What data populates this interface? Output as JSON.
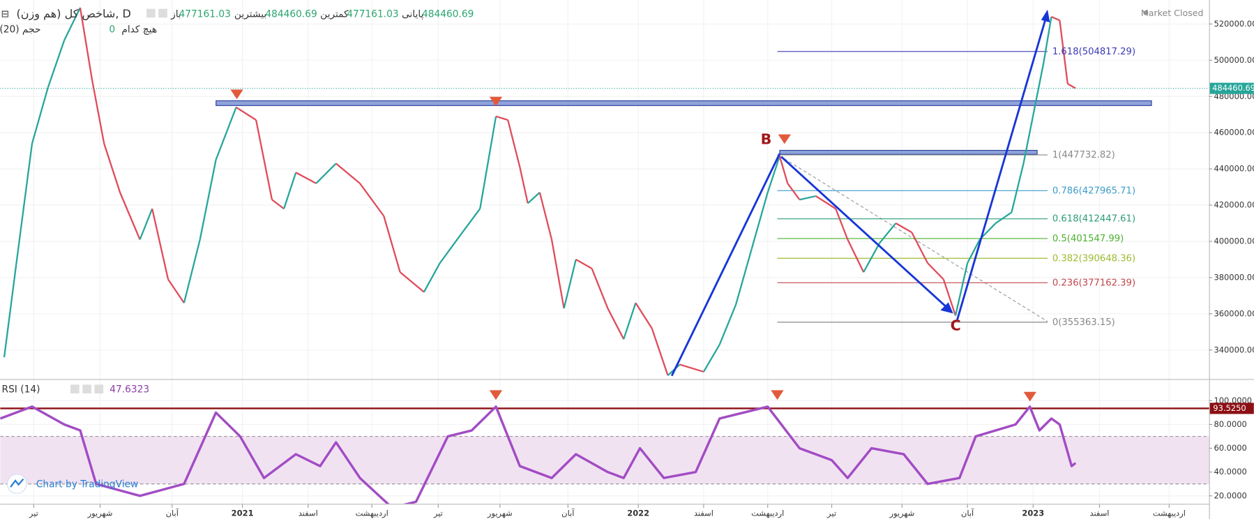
{
  "header": {
    "title": "شاخص کل (هم وزن), D",
    "open_label": "باز",
    "open": "477161.03",
    "high_label": "بیشترین",
    "high": "484460.69",
    "low_label": "کمترین",
    "low": "477161.03",
    "close_label": "پایانی",
    "close": "484460.69",
    "volume_title": "حجم (20)",
    "volume_none": "هیچ کدام",
    "volume_value": "0",
    "status": "Market Closed",
    "watermark": "Chart by TradingView"
  },
  "chart_data": [
    {
      "type": "candle-line",
      "up_color": "#26a69a",
      "down_color": "#e04b5a",
      "x": [
        -0.89,
        -0.53,
        -0.05,
        0.43,
        0.92,
        1.4,
        1.76,
        2.12,
        2.6,
        3.2,
        3.57,
        4.05,
        4.53,
        5.01,
        5.49,
        6.1,
        6.7,
        7.18,
        7.54,
        7.9,
        8.51,
        9.11,
        9.83,
        10.55,
        11.04,
        11.76,
        12.24,
        12.84,
        13.45,
        13.93,
        14.29,
        14.65,
        14.89,
        15.25,
        15.61,
        15.98,
        16.34,
        16.82,
        17.3,
        17.78,
        18.14,
        18.63,
        19.11,
        19.47,
        20.19,
        20.67,
        21.16,
        21.64,
        22.12,
        22.48,
        22.72,
        23.08,
        23.57,
        24.17,
        24.53,
        25.01,
        25.49,
        25.98,
        26.46,
        26.94,
        27.42,
        27.78,
        28.14,
        28.51,
        28.99,
        29.47,
        29.83,
        30.19,
        30.43,
        30.67,
        30.92,
        31.16,
        31.4
      ],
      "values": [
        336000,
        387000,
        454000,
        485000,
        511000,
        529000,
        489000,
        454000,
        427000,
        401000,
        418000,
        379000,
        366000,
        401000,
        445000,
        474000,
        467000,
        423000,
        418000,
        438000,
        432000,
        443000,
        432000,
        414000,
        383000,
        372000,
        388000,
        403000,
        418000,
        469000,
        467000,
        441000,
        421000,
        427000,
        401000,
        363000,
        390000,
        385000,
        363000,
        346000,
        366000,
        352000,
        326000,
        332000,
        328000,
        343000,
        365000,
        396000,
        427000,
        447000,
        432000,
        423000,
        425000,
        418000,
        401000,
        383000,
        399000,
        410000,
        405000,
        388000,
        379000,
        359000,
        388000,
        401000,
        410000,
        416000,
        443000,
        476000,
        498000,
        524000,
        522000,
        487000,
        484460.69
      ],
      "last_color": "#26a69a",
      "xlim": [
        -1.012,
        35.422
      ],
      "xticks": [
        {
          "value": 0,
          "label": "تیر"
        },
        {
          "value": 2,
          "label": "شهریور"
        },
        {
          "value": 4.17,
          "label": "آبان"
        },
        {
          "value": 6.29,
          "label": "2021"
        },
        {
          "value": 8.27,
          "label": "اسفند"
        },
        {
          "value": 10.19,
          "label": "اردیبهشت"
        },
        {
          "value": 12.19,
          "label": "تیر"
        },
        {
          "value": 14.05,
          "label": "شهریور"
        },
        {
          "value": 16.1,
          "label": "آبان"
        },
        {
          "value": 18.22,
          "label": "2022"
        },
        {
          "value": 20.19,
          "label": "اسفند"
        },
        {
          "value": 22.12,
          "label": "اردیبهشت"
        },
        {
          "value": 24.05,
          "label": "تیر"
        },
        {
          "value": 26.17,
          "label": "شهریور"
        },
        {
          "value": 28.14,
          "label": "آبان"
        },
        {
          "value": 30.12,
          "label": "2023"
        },
        {
          "value": 32.12,
          "label": "اسفند"
        },
        {
          "value": 34.22,
          "label": "اردیبهشت"
        }
      ],
      "ylim": [
        324415,
        533245
      ],
      "yticks": [
        {
          "value": 340000,
          "label": "340000.00"
        },
        {
          "value": 360000,
          "label": "360000.00"
        },
        {
          "value": 380000,
          "label": "380000.00"
        },
        {
          "value": 400000,
          "label": "400000.00"
        },
        {
          "value": 420000,
          "label": "420000.00"
        },
        {
          "value": 440000,
          "label": "440000.00"
        },
        {
          "value": 460000,
          "label": "460000.00"
        },
        {
          "value": 480000,
          "label": "480000.00"
        },
        {
          "value": 500000,
          "label": "500000.00"
        },
        {
          "value": 520000,
          "label": "520000.00"
        }
      ],
      "fib_levels": [
        {
          "label": "1.618(504817.29)",
          "value": 504817.29,
          "color": "#3b3bb8"
        },
        {
          "label": "1(447732.82)",
          "value": 447732.82,
          "color": "#888888"
        },
        {
          "label": "0.786(427965.71)",
          "value": 427965.71,
          "color": "#3d9cc9"
        },
        {
          "label": "0.618(412447.61)",
          "value": 412447.61,
          "color": "#2b9c77"
        },
        {
          "label": "0.5(401547.99)",
          "value": 401547.99,
          "color": "#4caf2f"
        },
        {
          "label": "0.382(390648.36)",
          "value": 390648.36,
          "color": "#9bbb2e"
        },
        {
          "label": "0.236(377162.39)",
          "value": 377162.39,
          "color": "#c0484d"
        },
        {
          "label": "0(355363.15)",
          "value": 355363.15,
          "color": "#888888"
        }
      ],
      "annotations": [
        "B",
        "C"
      ]
    },
    {
      "type": "line",
      "title": "RSI (14)",
      "color": "#a24cc4",
      "x": [
        -1.01,
        -0.05,
        0.92,
        1.4,
        1.88,
        3.2,
        4.53,
        5.49,
        6.22,
        6.94,
        7.9,
        8.63,
        9.11,
        9.83,
        10.8,
        11.52,
        12.48,
        13.2,
        13.93,
        14.65,
        15.61,
        16.34,
        17.3,
        17.78,
        18.27,
        18.99,
        19.95,
        20.67,
        22.12,
        23.08,
        24.05,
        24.53,
        25.25,
        26.22,
        26.94,
        27.9,
        28.39,
        29.59,
        30.02,
        30.31,
        30.67,
        30.92,
        31.28,
        31.4
      ],
      "values": [
        85,
        95,
        80,
        75,
        30,
        20,
        30,
        90,
        70,
        35,
        55,
        45,
        65,
        35,
        10,
        15,
        70,
        75,
        95,
        45,
        35,
        55,
        40,
        35,
        60,
        35,
        40,
        85,
        95,
        60,
        50,
        35,
        60,
        55,
        30,
        35,
        70,
        80,
        95,
        75,
        85,
        80,
        45,
        47.6323
      ],
      "ylim": [
        13.3,
        115.5
      ],
      "yticks": [
        {
          "value": 20,
          "label": "20.0000"
        },
        {
          "value": 40,
          "label": "40.0000"
        },
        {
          "value": 60,
          "label": "60.0000"
        },
        {
          "value": 80,
          "label": "80.0000"
        },
        {
          "value": 100,
          "label": "100.0000"
        }
      ],
      "band": [
        30,
        70
      ],
      "band_color": "#f1e2f2",
      "level": {
        "value": 93.525,
        "label": "93.5250"
      },
      "level_color": "#8b0f14"
    }
  ]
}
